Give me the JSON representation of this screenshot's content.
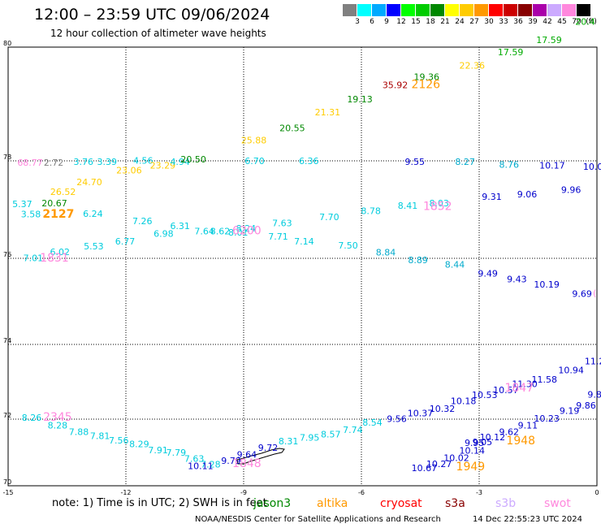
{
  "header": {
    "title": "12:00 – 23:59 UTC 09/06/2024",
    "subtitle": "12 hour collection of altimeter wave heights"
  },
  "colorbar": {
    "labels": [
      "3",
      "6",
      "9",
      "12",
      "15",
      "18",
      "21",
      "24",
      "27",
      "30",
      "33",
      "36",
      "39",
      "42",
      "45",
      "70",
      "(ft)"
    ],
    "colors": [
      "#808080",
      "#00ffff",
      "#00aaff",
      "#0000ff",
      "#00ff00",
      "#00cc00",
      "#008800",
      "#ffff00",
      "#ffcc00",
      "#ff9900",
      "#ff0000",
      "#cc0000",
      "#880000",
      "#aa00aa",
      "#ccaaff",
      "#ff88dd",
      "#000000"
    ]
  },
  "axes": {
    "lat_labels": [
      {
        "lat": 80,
        "text": "80"
      },
      {
        "lat": 78,
        "text": "78"
      },
      {
        "lat": 76,
        "text": "76"
      },
      {
        "lat": 74,
        "text": "74"
      },
      {
        "lat": 72,
        "text": "72"
      },
      {
        "lat": 70,
        "text": "70"
      }
    ],
    "lon_labels": [
      {
        "lon": -15,
        "text": "-15"
      },
      {
        "lon": -12,
        "text": "-12"
      },
      {
        "lon": -9,
        "text": "-9"
      },
      {
        "lon": -6,
        "text": "-6"
      },
      {
        "lon": -3,
        "text": "-3"
      },
      {
        "lon": 0,
        "text": "0"
      }
    ]
  },
  "observations": [
    {
      "lon": -14.44,
      "lat": 77.9,
      "text": "68.77",
      "color": "#ff88dd"
    },
    {
      "lon": -13.84,
      "lat": 77.9,
      "text": "2.72",
      "color": "#808080"
    },
    {
      "lon": -13.08,
      "lat": 77.92,
      "text": "3.76",
      "color": "#00ccdd"
    },
    {
      "lon": -12.48,
      "lat": 77.92,
      "text": "3.39",
      "color": "#00ccdd"
    },
    {
      "lon": -11.56,
      "lat": 77.94,
      "text": "4.56",
      "color": "#00ccdd"
    },
    {
      "lon": -11.06,
      "lat": 77.84,
      "text": "23.29",
      "color": "#ffcc00"
    },
    {
      "lon": -10.62,
      "lat": 77.92,
      "text": "4.94",
      "color": "#00ccdd"
    },
    {
      "lon": -10.28,
      "lat": 77.97,
      "text": "20.50",
      "color": "#008800"
    },
    {
      "lon": -11.92,
      "lat": 77.74,
      "text": "23.06",
      "color": "#ffcc00"
    },
    {
      "lon": -12.93,
      "lat": 77.5,
      "text": "24.70",
      "color": "#ffcc00"
    },
    {
      "lon": -13.6,
      "lat": 77.3,
      "text": "26.52",
      "color": "#ffcc00"
    },
    {
      "lon": -13.82,
      "lat": 77.07,
      "text": "20.67",
      "color": "#008800"
    },
    {
      "lon": -14.64,
      "lat": 77.05,
      "text": "5.37",
      "color": "#00ccdd"
    },
    {
      "lon": -14.42,
      "lat": 76.84,
      "text": "3.58",
      "color": "#00ccdd"
    },
    {
      "lon": -13.72,
      "lat": 76.83,
      "text": "2127",
      "color": "#ff9900",
      "bold": true,
      "size": 14
    },
    {
      "lon": -12.84,
      "lat": 76.85,
      "text": "6.24",
      "color": "#00ccdd"
    },
    {
      "lon": -11.58,
      "lat": 76.7,
      "text": "7.26",
      "color": "#00ccdd"
    },
    {
      "lon": -10.62,
      "lat": 76.6,
      "text": "6.31",
      "color": "#00ccdd"
    },
    {
      "lon": -11.04,
      "lat": 76.44,
      "text": "6.98",
      "color": "#00ccdd"
    },
    {
      "lon": -10.0,
      "lat": 76.49,
      "text": "7.64",
      "color": "#00ccdd"
    },
    {
      "lon": -9.6,
      "lat": 76.49,
      "text": "8.62",
      "color": "#00ccdd"
    },
    {
      "lon": -9.14,
      "lat": 76.47,
      "text": "8.01",
      "color": "#00ccdd"
    },
    {
      "lon": -8.94,
      "lat": 76.55,
      "text": "8.24",
      "color": "#00ccdd"
    },
    {
      "lon": -8.92,
      "lat": 76.49,
      "text": "6200",
      "color": "#ff88dd",
      "size": 14
    },
    {
      "lon": -8.02,
      "lat": 76.66,
      "text": "7.63",
      "color": "#00ccdd"
    },
    {
      "lon": -8.12,
      "lat": 76.38,
      "text": "7.71",
      "color": "#00ccdd"
    },
    {
      "lon": -7.46,
      "lat": 76.28,
      "text": "7.14",
      "color": "#00ccdd"
    },
    {
      "lon": -6.82,
      "lat": 76.78,
      "text": "7.70",
      "color": "#00ccdd"
    },
    {
      "lon": -6.34,
      "lat": 76.2,
      "text": "7.50",
      "color": "#00ccdd"
    },
    {
      "lon": -5.76,
      "lat": 76.91,
      "text": "8.78",
      "color": "#00ccdd"
    },
    {
      "lon": -4.82,
      "lat": 77.02,
      "text": "8.41",
      "color": "#00ccdd"
    },
    {
      "lon": -4.02,
      "lat": 77.07,
      "text": "8.03",
      "color": "#00ccdd"
    },
    {
      "lon": -4.06,
      "lat": 76.99,
      "text": "1852",
      "color": "#ff88dd",
      "size": 14
    },
    {
      "lon": -2.68,
      "lat": 77.2,
      "text": "9.31",
      "color": "#0000cc"
    },
    {
      "lon": -1.78,
      "lat": 77.25,
      "text": "9.06",
      "color": "#0000cc"
    },
    {
      "lon": -0.66,
      "lat": 77.34,
      "text": "9.96",
      "color": "#0000cc"
    },
    {
      "lon": -14.36,
      "lat": 75.93,
      "text": "7.01",
      "color": "#00ccdd"
    },
    {
      "lon": -13.68,
      "lat": 76.07,
      "text": "6.02",
      "color": "#00ccdd"
    },
    {
      "lon": -13.82,
      "lat": 75.92,
      "text": "1831",
      "color": "#ff88dd",
      "size": 14
    },
    {
      "lon": -12.82,
      "lat": 76.18,
      "text": "5.53",
      "color": "#00ccdd"
    },
    {
      "lon": -12.02,
      "lat": 76.28,
      "text": "6.77",
      "color": "#00ccdd"
    },
    {
      "lon": -5.38,
      "lat": 76.06,
      "text": "8.84",
      "color": "#00aacc"
    },
    {
      "lon": -4.56,
      "lat": 75.89,
      "text": "8.89",
      "color": "#00aacc"
    },
    {
      "lon": -3.62,
      "lat": 75.78,
      "text": "8.44",
      "color": "#00aacc"
    },
    {
      "lon": -2.78,
      "lat": 75.58,
      "text": "9.49",
      "color": "#0000cc"
    },
    {
      "lon": -2.04,
      "lat": 75.44,
      "text": "9.43",
      "color": "#0000cc"
    },
    {
      "lon": -1.28,
      "lat": 75.32,
      "text": "10.19",
      "color": "#0000cc"
    },
    {
      "lon": -0.38,
      "lat": 75.1,
      "text": "9.69",
      "color": "#0000cc"
    },
    {
      "lon": -8.74,
      "lat": 78.31,
      "text": "25.88",
      "color": "#ffcc00"
    },
    {
      "lon": -7.76,
      "lat": 78.52,
      "text": "20.55",
      "color": "#008800"
    },
    {
      "lon": -6.86,
      "lat": 78.8,
      "text": "21.31",
      "color": "#ffcc00"
    },
    {
      "lon": -6.04,
      "lat": 79.03,
      "text": "19.13",
      "color": "#008800"
    },
    {
      "lon": -5.14,
      "lat": 79.28,
      "text": "35.92",
      "color": "#aa0000"
    },
    {
      "lon": -4.34,
      "lat": 79.42,
      "text": "19.36",
      "color": "#008800"
    },
    {
      "lon": -4.36,
      "lat": 79.28,
      "text": "2126",
      "color": "#ff9900",
      "size": 14
    },
    {
      "lon": -3.18,
      "lat": 79.62,
      "text": "22.36",
      "color": "#ffcc00"
    },
    {
      "lon": -2.2,
      "lat": 79.86,
      "text": "17.59",
      "color": "#00aa00"
    },
    {
      "lon": -1.22,
      "lat": 80.07,
      "text": "17.59",
      "color": "#00aa00"
    },
    {
      "lon": -0.3,
      "lat": 80.39,
      "text": "20.4",
      "color": "#00aa00"
    },
    {
      "lon": -8.72,
      "lat": 77.93,
      "text": "6.70",
      "color": "#00ccdd"
    },
    {
      "lon": -7.34,
      "lat": 77.93,
      "text": "6.36",
      "color": "#00ccdd"
    },
    {
      "lon": -4.64,
      "lat": 77.92,
      "text": "9.55",
      "color": "#0000cc"
    },
    {
      "lon": -3.36,
      "lat": 77.92,
      "text": "8.27",
      "color": "#00aacc"
    },
    {
      "lon": -2.24,
      "lat": 77.86,
      "text": "8.76",
      "color": "#00aacc"
    },
    {
      "lon": -1.14,
      "lat": 77.84,
      "text": "10.17",
      "color": "#0000cc"
    },
    {
      "lon": -0.1,
      "lat": 77.82,
      "text": "10.0",
      "color": "#0000cc"
    },
    {
      "lon": -14.4,
      "lat": 71.95,
      "text": "8.26",
      "color": "#00ccdd"
    },
    {
      "lon": -13.74,
      "lat": 71.95,
      "text": "2345",
      "color": "#ff88dd",
      "size": 14
    },
    {
      "lon": -13.74,
      "lat": 71.72,
      "text": "8.28",
      "color": "#00ccdd"
    },
    {
      "lon": -13.2,
      "lat": 71.52,
      "text": "7.88",
      "color": "#00ccdd"
    },
    {
      "lon": -12.66,
      "lat": 71.4,
      "text": "7.81",
      "color": "#00ccdd"
    },
    {
      "lon": -12.18,
      "lat": 71.27,
      "text": "7.56",
      "color": "#00ccdd"
    },
    {
      "lon": -11.66,
      "lat": 71.16,
      "text": "8.29",
      "color": "#00ccdd"
    },
    {
      "lon": -11.18,
      "lat": 70.98,
      "text": "7.91",
      "color": "#00ccdd"
    },
    {
      "lon": -10.72,
      "lat": 70.9,
      "text": "7.79",
      "color": "#00ccdd"
    },
    {
      "lon": -10.26,
      "lat": 70.72,
      "text": "7.63",
      "color": "#00ccdd"
    },
    {
      "lon": -9.84,
      "lat": 70.55,
      "text": "7.28",
      "color": "#00ccdd"
    },
    {
      "lon": -10.1,
      "lat": 70.5,
      "text": "10.11",
      "color": "#0000cc"
    },
    {
      "lon": -9.32,
      "lat": 70.66,
      "text": "9.79",
      "color": "#0000cc"
    },
    {
      "lon": -8.92,
      "lat": 70.56,
      "text": "1848",
      "color": "#ff88dd",
      "size": 14
    },
    {
      "lon": -8.92,
      "lat": 70.84,
      "text": "9.64",
      "color": "#0000cc"
    },
    {
      "lon": -8.38,
      "lat": 71.05,
      "text": "9.72",
      "color": "#0000cc"
    },
    {
      "lon": -7.86,
      "lat": 71.25,
      "text": "8.31",
      "color": "#00ccdd"
    },
    {
      "lon": -7.32,
      "lat": 71.35,
      "text": "7.95",
      "color": "#00ccdd"
    },
    {
      "lon": -6.78,
      "lat": 71.45,
      "text": "8.57",
      "color": "#00ccdd"
    },
    {
      "lon": -6.22,
      "lat": 71.58,
      "text": "7.74",
      "color": "#00ccdd"
    },
    {
      "lon": -5.72,
      "lat": 71.8,
      "text": "8.54",
      "color": "#00ccdd"
    },
    {
      "lon": -5.1,
      "lat": 71.92,
      "text": "9.56",
      "color": "#0000cc"
    },
    {
      "lon": -4.5,
      "lat": 72.08,
      "text": "10.37",
      "color": "#0000cc"
    },
    {
      "lon": -3.94,
      "lat": 72.2,
      "text": "10.32",
      "color": "#0000cc"
    },
    {
      "lon": -3.4,
      "lat": 72.4,
      "text": "10.18",
      "color": "#0000cc"
    },
    {
      "lon": -2.86,
      "lat": 72.56,
      "text": "10.53",
      "color": "#0000cc"
    },
    {
      "lon": -2.32,
      "lat": 72.7,
      "text": "10.57",
      "color": "#0000cc"
    },
    {
      "lon": -1.84,
      "lat": 72.86,
      "text": "11.30",
      "color": "#0000cc"
    },
    {
      "lon": -1.98,
      "lat": 72.74,
      "text": "1847",
      "color": "#ff88dd",
      "size": 14
    },
    {
      "lon": -1.34,
      "lat": 72.98,
      "text": "11.58",
      "color": "#0000cc"
    },
    {
      "lon": -0.66,
      "lat": 73.23,
      "text": "10.94",
      "color": "#0000cc"
    },
    {
      "lon": -0.06,
      "lat": 73.47,
      "text": "11.2",
      "color": "#0000cc"
    },
    {
      "lon": -0.28,
      "lat": 72.28,
      "text": "9.86",
      "color": "#0000cc"
    },
    {
      "lon": -0.7,
      "lat": 72.14,
      "text": "9.19",
      "color": "#0000cc"
    },
    {
      "lon": -1.28,
      "lat": 71.93,
      "text": "10.23",
      "color": "#0000cc"
    },
    {
      "lon": -1.76,
      "lat": 71.72,
      "text": "9.11",
      "color": "#0000cc"
    },
    {
      "lon": -2.24,
      "lat": 71.52,
      "text": "9.62",
      "color": "#0000cc"
    },
    {
      "lon": -2.66,
      "lat": 71.36,
      "text": "10.12",
      "color": "#0000cc"
    },
    {
      "lon": -3.12,
      "lat": 71.2,
      "text": "9.95",
      "color": "#0000cc"
    },
    {
      "lon": -2.92,
      "lat": 71.22,
      "text": "9.05",
      "color": "#0000cc"
    },
    {
      "lon": -1.94,
      "lat": 71.24,
      "text": "1948",
      "color": "#ff9900",
      "size": 14
    },
    {
      "lon": -3.18,
      "lat": 70.96,
      "text": "10.14",
      "color": "#0000cc"
    },
    {
      "lon": -3.58,
      "lat": 70.74,
      "text": "10.02",
      "color": "#0000cc"
    },
    {
      "lon": -4.02,
      "lat": 70.56,
      "text": "10.27",
      "color": "#0000cc"
    },
    {
      "lon": -4.4,
      "lat": 70.44,
      "text": "10.67",
      "color": "#0000cc"
    },
    {
      "lon": -3.22,
      "lat": 70.46,
      "text": "1949",
      "color": "#ff9900",
      "size": 14
    },
    {
      "lon": -0.06,
      "lat": 72.58,
      "text": "9.8",
      "color": "#0000cc"
    },
    {
      "lon": -0.06,
      "lat": 75.12,
      "text": "(",
      "color": "#ff88dd"
    }
  ],
  "footer": {
    "note": "note:  1) Time is in UTC;  2) SWH is in feet",
    "satellites": [
      {
        "name": "jason3",
        "color": "#008800"
      },
      {
        "name": "altika",
        "color": "#ff9900"
      },
      {
        "name": "cryosat",
        "color": "#ff0000"
      },
      {
        "name": "s3a",
        "color": "#880000"
      },
      {
        "name": "s3b",
        "color": "#ccaaff"
      },
      {
        "name": "swot",
        "color": "#ff88dd"
      }
    ],
    "credit": "NOAA/NESDIS Center for Satellite Applications and Research",
    "timestamp": "14 Dec 22:55:23 UTC 2024"
  }
}
